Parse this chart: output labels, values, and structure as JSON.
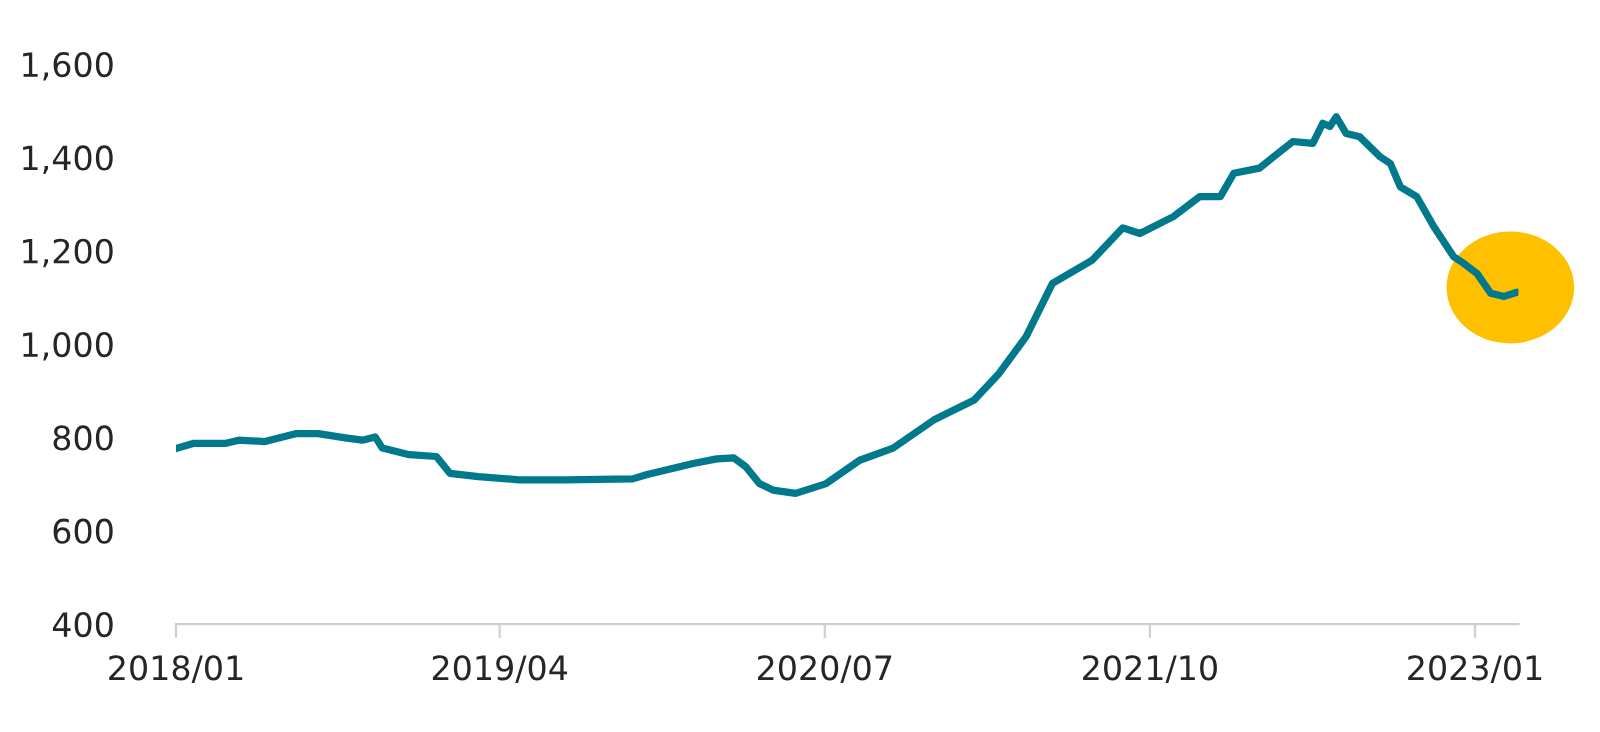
{
  "chart_data": {
    "type": "line",
    "x": [
      "2018-01-01",
      "2018-01-25",
      "2018-03-11",
      "2018-03-30",
      "2018-05-06",
      "2018-06-18",
      "2018-07-20",
      "2018-08-27",
      "2018-09-20",
      "2018-10-08",
      "2018-10-18",
      "2018-11-25",
      "2019-01-02",
      "2019-01-21",
      "2019-03-02",
      "2019-04-28",
      "2019-07-02",
      "2019-10-05",
      "2019-10-24",
      "2019-12-29",
      "2020-01-31",
      "2020-02-24",
      "2020-03-12",
      "2020-03-31",
      "2020-04-19",
      "2020-05-21",
      "2020-07-03",
      "2020-08-19",
      "2020-10-05",
      "2020-12-01",
      "2021-01-27",
      "2021-03-03",
      "2021-04-10",
      "2021-05-17",
      "2021-07-12",
      "2021-08-24",
      "2021-09-17",
      "2021-11-03",
      "2021-12-10",
      "2022-01-08",
      "2022-01-27",
      "2022-03-04",
      "2022-04-20",
      "2022-05-18",
      "2022-06-01",
      "2022-06-11",
      "2022-06-20",
      "2022-07-04",
      "2022-07-23",
      "2022-08-20",
      "2022-09-04",
      "2022-09-18",
      "2022-10-11",
      "2022-11-04",
      "2022-12-02",
      "2022-12-16",
      "2023-01-04",
      "2023-01-23",
      "2023-02-11",
      "2023-03-01"
    ],
    "series": [
      {
        "color": "#00798c",
        "values": [
          776,
          787,
          787,
          794,
          791,
          808,
          808,
          799,
          794,
          801,
          777,
          763,
          759,
          723,
          716,
          709,
          709,
          711,
          720,
          744,
          754,
          756,
          737,
          701,
          687,
          680,
          701,
          751,
          777,
          837,
          880,
          937,
          1016,
          1130,
          1180,
          1249,
          1237,
          1273,
          1316,
          1316,
          1366,
          1377,
          1434,
          1430,
          1473,
          1466,
          1487,
          1451,
          1444,
          1402,
          1387,
          1337,
          1316,
          1252,
          1187,
          1173,
          1151,
          1109,
          1102,
          1111
        ]
      }
    ],
    "xlim": [
      "2018-01-01",
      "2023-03-03"
    ],
    "xticks": [
      {
        "value": "2018-01-01",
        "label": "2018/01"
      },
      {
        "value": "2019-04-01",
        "label": "2019/04"
      },
      {
        "value": "2020-07-01",
        "label": "2020/07"
      },
      {
        "value": "2021-10-01",
        "label": "2021/10"
      },
      {
        "value": "2023-01-01",
        "label": "2023/01"
      }
    ],
    "ylim": [
      400,
      1600
    ],
    "yticks": [
      {
        "value": 400,
        "label": "400"
      },
      {
        "value": 600,
        "label": "600"
      },
      {
        "value": 800,
        "label": "800"
      },
      {
        "value": 1000,
        "label": "1,000"
      },
      {
        "value": 1200,
        "label": "1,200"
      },
      {
        "value": 1400,
        "label": "1,400"
      },
      {
        "value": 1600,
        "label": "1,600"
      }
    ],
    "grid": false,
    "legend": false,
    "marker": "none",
    "line_style": "solid"
  }
}
